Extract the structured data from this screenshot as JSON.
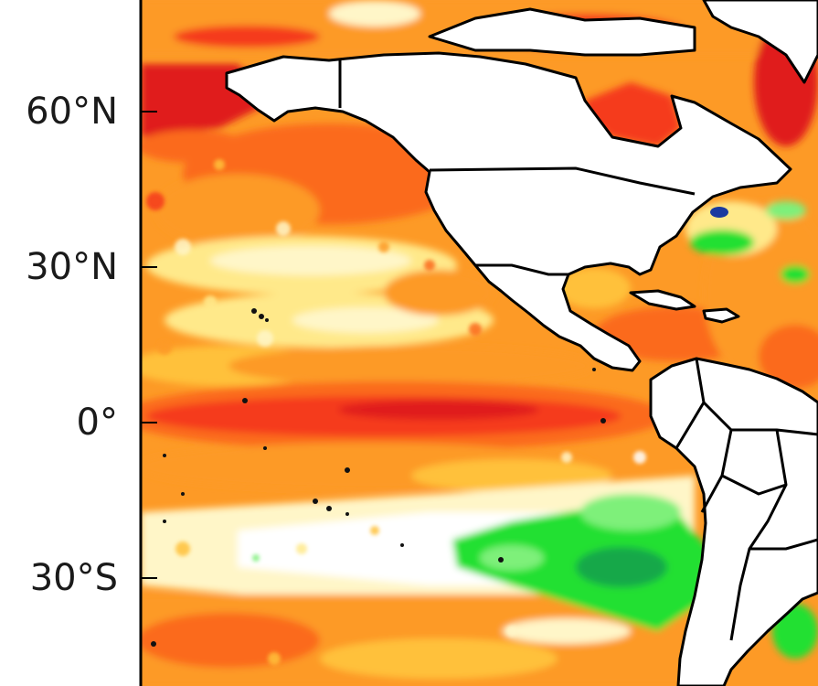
{
  "map": {
    "projection": "equirectangular",
    "field": "sea-surface-temperature-anomaly",
    "frame_color": "#000000",
    "land_color": "#ffffff",
    "coastline_color": "#000000",
    "y_axis": {
      "ticks": [
        {
          "lat": 60,
          "label": "60°N"
        },
        {
          "lat": 30,
          "label": "30°N"
        },
        {
          "lat": 0,
          "label": "0°"
        },
        {
          "lat": -30,
          "label": "30°S"
        }
      ]
    },
    "palette": {
      "deep_red": "#e01b1b",
      "red": "#f53a1a",
      "red_orange": "#fb6a1c",
      "orange": "#fd9a26",
      "light_orange": "#ffc13a",
      "yellow": "#ffe98a",
      "pale_yellow": "#fff6c8",
      "neutral": "#ffffff",
      "light_green": "#7ef07a",
      "green": "#22e030",
      "dark_green": "#14a84a",
      "blue": "#1a3aa0"
    }
  }
}
